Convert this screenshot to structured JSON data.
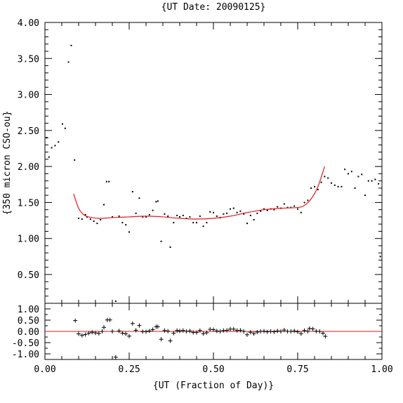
{
  "chart_data": {
    "type": "scatter",
    "title": "{UT Date: 20090125}",
    "xlabel": "{UT (Fraction of Day)}",
    "ylabel": "{350 micron CSO-ou}",
    "xlim": [
      0.0,
      1.0
    ],
    "x_ticks": [
      "0.00",
      "0.25",
      "0.50",
      "0.75",
      "1.00"
    ],
    "main": {
      "ylim": [
        0.1,
        4.0
      ],
      "y_ticks": [
        "0.50",
        "1.00",
        "1.50",
        "2.00",
        "2.50",
        "3.00",
        "3.50",
        "4.00"
      ],
      "colors": {
        "points": "#000000",
        "fit": "#e41a1c"
      },
      "points": [
        [
          0.005,
          2.4
        ],
        [
          0.012,
          2.13
        ],
        [
          0.02,
          2.26
        ],
        [
          0.03,
          2.29
        ],
        [
          0.04,
          2.34
        ],
        [
          0.052,
          2.59
        ],
        [
          0.06,
          2.53
        ],
        [
          0.07,
          3.45
        ],
        [
          0.078,
          3.68
        ],
        [
          0.088,
          2.09
        ],
        [
          0.1,
          1.28
        ],
        [
          0.11,
          1.27
        ],
        [
          0.12,
          1.33
        ],
        [
          0.125,
          1.3
        ],
        [
          0.135,
          1.27
        ],
        [
          0.145,
          1.24
        ],
        [
          0.155,
          1.21
        ],
        [
          0.165,
          1.26
        ],
        [
          0.175,
          1.47
        ],
        [
          0.183,
          1.79
        ],
        [
          0.19,
          1.79
        ],
        [
          0.2,
          1.3
        ],
        [
          0.21,
          0.13
        ],
        [
          0.22,
          1.31
        ],
        [
          0.23,
          1.22
        ],
        [
          0.24,
          1.19
        ],
        [
          0.25,
          1.09
        ],
        [
          0.26,
          1.65
        ],
        [
          0.27,
          1.35
        ],
        [
          0.28,
          1.56
        ],
        [
          0.29,
          1.3
        ],
        [
          0.3,
          1.3
        ],
        [
          0.31,
          1.33
        ],
        [
          0.32,
          1.39
        ],
        [
          0.33,
          1.51
        ],
        [
          0.335,
          1.52
        ],
        [
          0.345,
          0.96
        ],
        [
          0.355,
          1.34
        ],
        [
          0.365,
          1.31
        ],
        [
          0.372,
          0.88
        ],
        [
          0.382,
          1.22
        ],
        [
          0.392,
          1.32
        ],
        [
          0.4,
          1.3
        ],
        [
          0.41,
          1.32
        ],
        [
          0.42,
          1.28
        ],
        [
          0.43,
          1.3
        ],
        [
          0.44,
          1.22
        ],
        [
          0.45,
          1.22
        ],
        [
          0.46,
          1.31
        ],
        [
          0.47,
          1.17
        ],
        [
          0.48,
          1.22
        ],
        [
          0.49,
          1.37
        ],
        [
          0.5,
          1.36
        ],
        [
          0.51,
          1.31
        ],
        [
          0.52,
          1.29
        ],
        [
          0.53,
          1.34
        ],
        [
          0.54,
          1.35
        ],
        [
          0.55,
          1.41
        ],
        [
          0.56,
          1.42
        ],
        [
          0.57,
          1.36
        ],
        [
          0.58,
          1.38
        ],
        [
          0.59,
          1.34
        ],
        [
          0.6,
          1.21
        ],
        [
          0.61,
          1.32
        ],
        [
          0.62,
          1.26
        ],
        [
          0.63,
          1.35
        ],
        [
          0.64,
          1.38
        ],
        [
          0.65,
          1.41
        ],
        [
          0.66,
          1.39
        ],
        [
          0.67,
          1.41
        ],
        [
          0.68,
          1.4
        ],
        [
          0.69,
          1.44
        ],
        [
          0.7,
          1.42
        ],
        [
          0.71,
          1.48
        ],
        [
          0.72,
          1.43
        ],
        [
          0.73,
          1.43
        ],
        [
          0.74,
          1.45
        ],
        [
          0.75,
          1.41
        ],
        [
          0.76,
          1.36
        ],
        [
          0.77,
          1.5
        ],
        [
          0.78,
          1.53
        ],
        [
          0.79,
          1.7
        ],
        [
          0.8,
          1.72
        ],
        [
          0.81,
          1.68
        ],
        [
          0.82,
          1.78
        ],
        [
          0.83,
          1.86
        ],
        [
          0.84,
          1.84
        ],
        [
          0.85,
          1.77
        ],
        [
          0.86,
          1.74
        ],
        [
          0.87,
          1.72
        ],
        [
          0.88,
          1.72
        ],
        [
          0.89,
          1.96
        ],
        [
          0.9,
          1.9
        ],
        [
          0.91,
          1.93
        ],
        [
          0.92,
          1.7
        ],
        [
          0.93,
          1.86
        ],
        [
          0.94,
          1.89
        ],
        [
          0.95,
          1.6
        ],
        [
          0.96,
          1.8
        ],
        [
          0.97,
          1.8
        ],
        [
          0.98,
          1.82
        ],
        [
          0.99,
          1.76
        ],
        [
          0.995,
          0.75
        ]
      ],
      "fit": [
        [
          0.085,
          1.62
        ],
        [
          0.1,
          1.42
        ],
        [
          0.115,
          1.33
        ],
        [
          0.13,
          1.3
        ],
        [
          0.16,
          1.28
        ],
        [
          0.2,
          1.29
        ],
        [
          0.25,
          1.3
        ],
        [
          0.3,
          1.31
        ],
        [
          0.35,
          1.3
        ],
        [
          0.4,
          1.28
        ],
        [
          0.45,
          1.27
        ],
        [
          0.5,
          1.28
        ],
        [
          0.55,
          1.31
        ],
        [
          0.6,
          1.36
        ],
        [
          0.65,
          1.4
        ],
        [
          0.7,
          1.42
        ],
        [
          0.75,
          1.43
        ],
        [
          0.77,
          1.46
        ],
        [
          0.79,
          1.55
        ],
        [
          0.81,
          1.72
        ],
        [
          0.83,
          2.0
        ]
      ]
    },
    "residuals": {
      "ylim": [
        -1.25,
        1.25
      ],
      "y_ticks": [
        "1.00",
        "0.50",
        "0.00",
        "-0.50",
        "-1.00"
      ],
      "colors": {
        "points": "#000000",
        "zero": "#e41a1c"
      },
      "points": [
        [
          0.09,
          0.48
        ],
        [
          0.1,
          -0.11
        ],
        [
          0.11,
          -0.18
        ],
        [
          0.12,
          -0.14
        ],
        [
          0.13,
          -0.08
        ],
        [
          0.14,
          -0.04
        ],
        [
          0.15,
          -0.07
        ],
        [
          0.16,
          -0.09
        ],
        [
          0.17,
          0.0
        ],
        [
          0.175,
          0.18
        ],
        [
          0.185,
          0.51
        ],
        [
          0.193,
          0.51
        ],
        [
          0.2,
          0.0
        ],
        [
          0.21,
          -1.15
        ],
        [
          0.22,
          0.02
        ],
        [
          0.23,
          -0.08
        ],
        [
          0.24,
          -0.11
        ],
        [
          0.25,
          -0.21
        ],
        [
          0.26,
          0.35
        ],
        [
          0.27,
          0.05
        ],
        [
          0.28,
          0.26
        ],
        [
          0.29,
          -0.01
        ],
        [
          0.3,
          -0.01
        ],
        [
          0.31,
          0.02
        ],
        [
          0.32,
          0.08
        ],
        [
          0.33,
          0.21
        ],
        [
          0.335,
          0.21
        ],
        [
          0.345,
          -0.35
        ],
        [
          0.355,
          0.04
        ],
        [
          0.365,
          0.01
        ],
        [
          0.372,
          -0.42
        ],
        [
          0.382,
          -0.08
        ],
        [
          0.392,
          0.04
        ],
        [
          0.4,
          0.02
        ],
        [
          0.41,
          0.04
        ],
        [
          0.42,
          0.0
        ],
        [
          0.43,
          0.02
        ],
        [
          0.44,
          -0.05
        ],
        [
          0.45,
          -0.05
        ],
        [
          0.46,
          0.04
        ],
        [
          0.47,
          -0.1
        ],
        [
          0.48,
          -0.06
        ],
        [
          0.49,
          0.09
        ],
        [
          0.5,
          0.08
        ],
        [
          0.51,
          0.02
        ],
        [
          0.52,
          0.0
        ],
        [
          0.53,
          0.04
        ],
        [
          0.54,
          0.05
        ],
        [
          0.55,
          0.1
        ],
        [
          0.56,
          0.1
        ],
        [
          0.57,
          0.04
        ],
        [
          0.58,
          0.05
        ],
        [
          0.59,
          0.0
        ],
        [
          0.6,
          -0.15
        ],
        [
          0.61,
          -0.04
        ],
        [
          0.62,
          -0.1
        ],
        [
          0.63,
          -0.03
        ],
        [
          0.64,
          0.0
        ],
        [
          0.65,
          0.01
        ],
        [
          0.66,
          -0.02
        ],
        [
          0.67,
          0.0
        ],
        [
          0.68,
          -0.02
        ],
        [
          0.69,
          0.02
        ],
        [
          0.7,
          0.0
        ],
        [
          0.71,
          0.06
        ],
        [
          0.72,
          0.0
        ],
        [
          0.73,
          0.0
        ],
        [
          0.74,
          0.02
        ],
        [
          0.75,
          -0.02
        ],
        [
          0.76,
          -0.1
        ],
        [
          0.77,
          0.04
        ],
        [
          0.78,
          0.0
        ],
        [
          0.785,
          0.13
        ],
        [
          0.795,
          0.11
        ],
        [
          0.805,
          0.01
        ],
        [
          0.815,
          0.0
        ],
        [
          0.825,
          -0.08
        ],
        [
          0.832,
          -0.22
        ]
      ]
    }
  }
}
